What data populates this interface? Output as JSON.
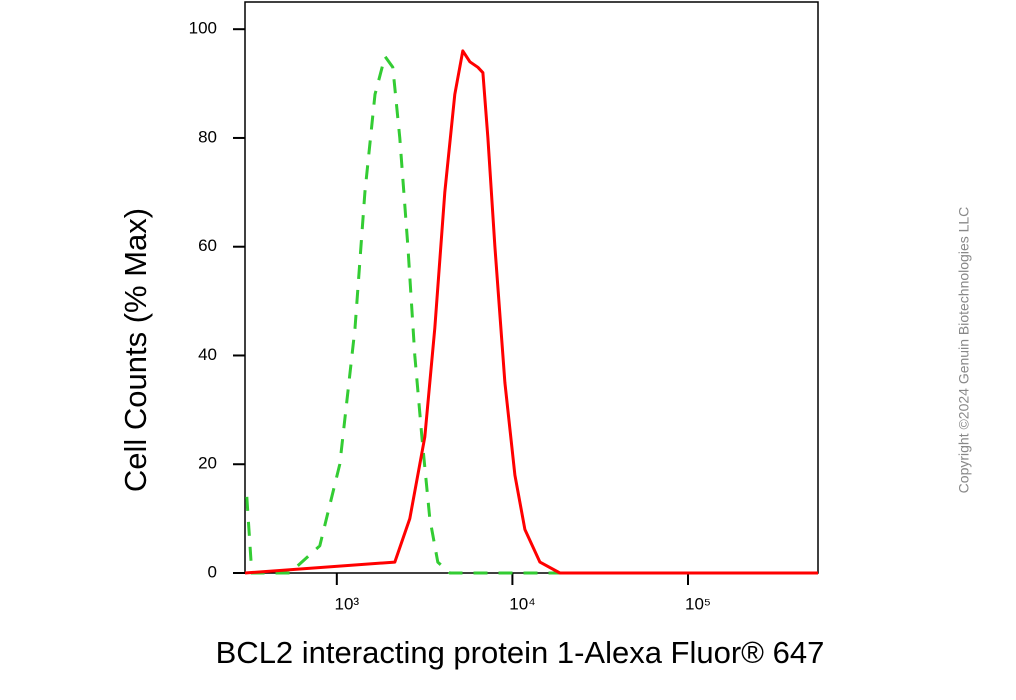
{
  "chart_data": {
    "type": "line",
    "xlabel": "BCL2 interacting protein 1-Alexa Fluor® 647",
    "ylabel": "Cell Counts (% Max)",
    "xscale": "log",
    "xlim": [
      300,
      550000
    ],
    "ylim": [
      0,
      105
    ],
    "xticks": [
      {
        "value": 1000,
        "label": "10³"
      },
      {
        "value": 10000,
        "label": "10⁴"
      },
      {
        "value": 100000,
        "label": "10⁵"
      }
    ],
    "yticks": [
      0,
      20,
      40,
      60,
      80,
      100
    ],
    "series": [
      {
        "color": "#33cc33",
        "line_style": "dashed",
        "x": [
          307,
          328,
          540,
          800,
          1040,
          1270,
          1445,
          1650,
          1880,
          2085,
          2285,
          2540,
          2780,
          3050,
          3385,
          3760,
          4400,
          550000
        ],
        "values": [
          14,
          0,
          0,
          5,
          20,
          45,
          70,
          88,
          95,
          93,
          80,
          60,
          40,
          25,
          10,
          2,
          0,
          0
        ]
      },
      {
        "color": "#ff0000",
        "line_style": "solid",
        "x": [
          300,
          2140,
          2605,
          3170,
          3615,
          4120,
          4700,
          5220,
          5725,
          6360,
          6790,
          7250,
          7945,
          9060,
          10330,
          11780,
          14350,
          18650,
          550000
        ],
        "values": [
          0,
          2,
          10,
          25,
          45,
          70,
          88,
          96,
          94,
          93,
          92,
          80,
          60,
          35,
          18,
          8,
          2,
          0,
          0
        ]
      }
    ]
  },
  "watermark": "Copyright ©2024 Genuin Biotechnologies LLC"
}
